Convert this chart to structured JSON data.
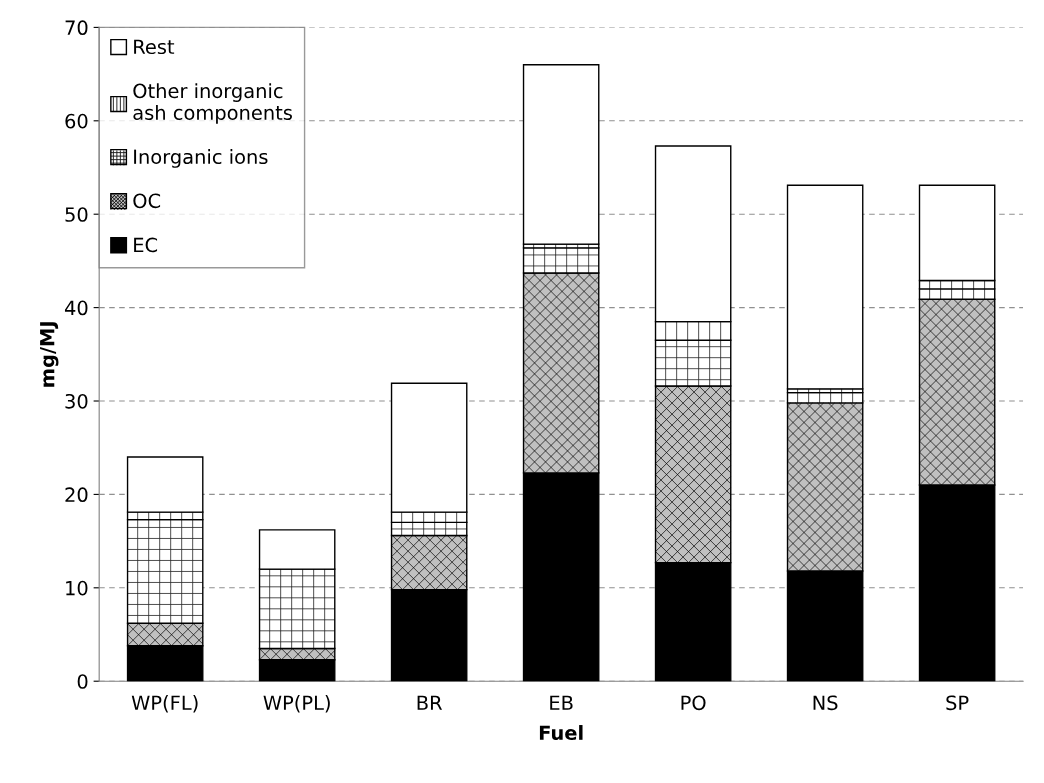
{
  "chart_data": {
    "type": "bar",
    "stacked": true,
    "xlabel": "Fuel",
    "ylabel": "mg/MJ",
    "categories": [
      "WP(FL)",
      "WP(PL)",
      "BR",
      "EB",
      "PO",
      "NS",
      "SP"
    ],
    "series": [
      {
        "name": "EC",
        "color": "#000000",
        "values": [
          3.8,
          2.3,
          9.8,
          22.3,
          12.7,
          11.8,
          21.0
        ]
      },
      {
        "name": "OC",
        "color": "#c0c0c0",
        "values": [
          2.4,
          1.2,
          5.8,
          21.4,
          18.9,
          18.0,
          19.9
        ]
      },
      {
        "name": "Inorganic ions",
        "color": "#ffffff",
        "values": [
          11.1,
          8.5,
          1.4,
          2.7,
          4.9,
          1.1,
          1.1
        ]
      },
      {
        "name": "Other inorganic\nash components",
        "color": "#ffffff",
        "values": [
          0.8,
          null,
          1.1,
          0.4,
          2.0,
          0.4,
          0.9
        ]
      },
      {
        "name": "Rest",
        "color": "#ffffff",
        "values": [
          5.9,
          4.2,
          13.8,
          19.2,
          18.8,
          21.8,
          10.2
        ]
      }
    ],
    "ylim": [
      0,
      70
    ],
    "yticks": [
      0,
      10,
      20,
      30,
      40,
      50,
      60,
      70
    ],
    "grid": "y",
    "legend": "top left"
  }
}
